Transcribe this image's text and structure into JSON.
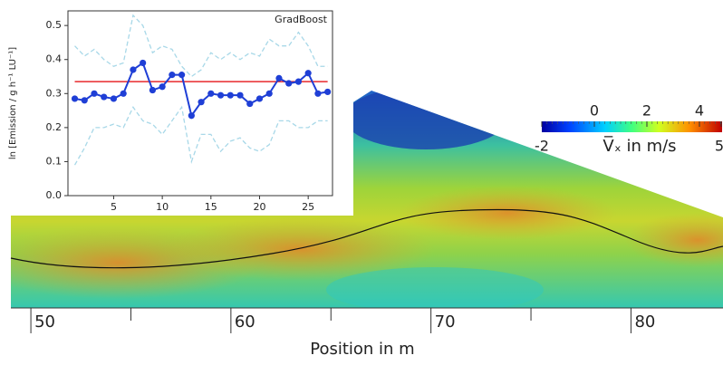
{
  "chart_data": [
    {
      "type": "line",
      "title": "GradBoost",
      "ylabel": "ln [Emission / g h⁻¹ LU⁻¹]",
      "x": [
        1,
        2,
        3,
        4,
        5,
        6,
        7,
        8,
        9,
        10,
        11,
        12,
        13,
        14,
        15,
        16,
        17,
        18,
        19,
        20,
        21,
        22,
        23,
        24,
        25,
        26,
        27
      ],
      "series": [
        {
          "color": "#1f3fd6",
          "linestyle": "solid",
          "marker": true,
          "values": [
            0.285,
            0.28,
            0.3,
            0.29,
            0.285,
            0.3,
            0.37,
            0.39,
            0.31,
            0.32,
            0.355,
            0.355,
            0.235,
            0.275,
            0.3,
            0.295,
            0.295,
            0.295,
            0.27,
            0.285,
            0.3,
            0.345,
            0.33,
            0.335,
            0.36,
            0.3,
            0.305
          ]
        },
        {
          "color": "#a8d8e8",
          "linestyle": "dashed",
          "marker": false,
          "values": [
            0.44,
            0.41,
            0.43,
            0.4,
            0.38,
            0.39,
            0.53,
            0.5,
            0.42,
            0.44,
            0.43,
            0.38,
            0.35,
            0.37,
            0.42,
            0.4,
            0.42,
            0.4,
            0.42,
            0.41,
            0.46,
            0.44,
            0.44,
            0.48,
            0.44,
            0.38,
            0.38
          ]
        },
        {
          "color": "#a8d8e8",
          "linestyle": "dashed",
          "marker": false,
          "values": [
            0.09,
            0.14,
            0.2,
            0.2,
            0.21,
            0.2,
            0.26,
            0.22,
            0.21,
            0.18,
            0.22,
            0.26,
            0.1,
            0.18,
            0.18,
            0.13,
            0.16,
            0.17,
            0.14,
            0.13,
            0.15,
            0.22,
            0.22,
            0.2,
            0.2,
            0.22,
            0.22
          ]
        }
      ],
      "hlines": [
        {
          "y": 0.335,
          "color": "#e8282b"
        }
      ],
      "xlim": [
        0.3,
        27.5
      ],
      "xticks": [
        5,
        10,
        15,
        20,
        25
      ],
      "ylim": [
        0,
        0.543
      ],
      "yticks": [
        {
          "value": 0,
          "label": "0.0"
        },
        {
          "value": 0.1,
          "label": "0.1"
        },
        {
          "value": 0.2,
          "label": "0.2"
        },
        {
          "value": 0.3,
          "label": "0.3"
        },
        {
          "value": 0.4,
          "label": "0.4"
        },
        {
          "value": 0.5,
          "label": "0.5"
        }
      ]
    },
    {
      "type": "field",
      "xlabel": "Position in m",
      "xlim": [
        49,
        84.6
      ],
      "xticks": [
        50,
        60,
        70,
        80
      ],
      "xminorticks": [
        55,
        65,
        75
      ],
      "colorbar_label": "V̅ₓ in m/s",
      "clim": [
        -2,
        5
      ],
      "cticks": [
        -2,
        0,
        2,
        4,
        5
      ]
    }
  ]
}
